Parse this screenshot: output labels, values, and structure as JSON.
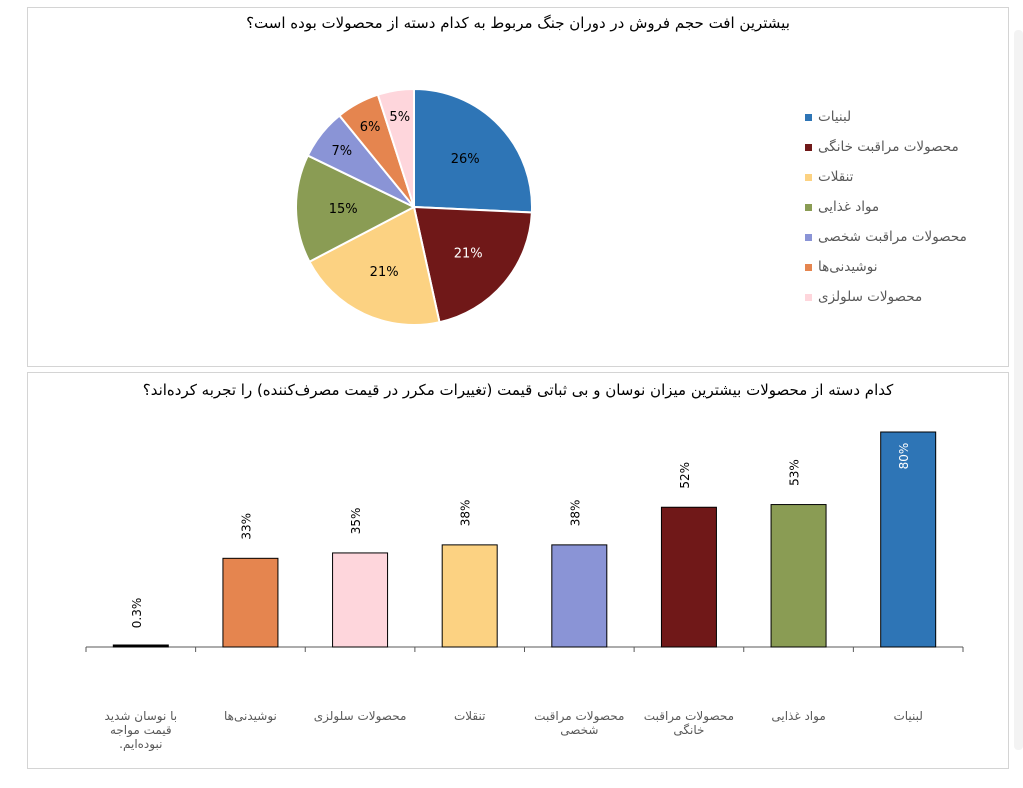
{
  "colors": {
    "blue": "#2e75b6",
    "maroon": "#701818",
    "yellow": "#fcd282",
    "green": "#8a9c54",
    "purple": "#8a94d6",
    "orange": "#e5854f",
    "pink": "#fed6dc"
  },
  "chart_data": [
    {
      "type": "pie",
      "title": "بیشترین افت حجم فروش در دوران جنگ مربوط به کدام دسته از محصولات بوده است؟",
      "categories": [
        "لبنیات",
        "محصولات مراقبت خانگی",
        "تنقلات",
        "مواد غذایی",
        "محصولات مراقبت شخصی",
        "نوشیدنی‌ها",
        "محصولات سلولزی"
      ],
      "values": [
        26,
        21,
        21,
        15,
        7,
        6,
        5
      ],
      "data_labels": [
        "26%",
        "21%",
        "21%",
        "15%",
        "7%",
        "6%",
        "5%"
      ],
      "colors": [
        "#2e75b6",
        "#701818",
        "#fcd282",
        "#8a9c54",
        "#8a94d6",
        "#e5854f",
        "#fed6dc"
      ],
      "legend": "right"
    },
    {
      "type": "bar",
      "title": "کدام دسته از محصولات بیشترین میزان نوسان و بی ثباتی قیمت (تغییرات مکرر در قیمت مصرف‌کننده) را تجربه کرده‌اند؟",
      "categories": [
        "لبنیات",
        "مواد غذایی",
        "محصولات مراقبت خانگی",
        "محصولات مراقبت شخصی",
        "تنقلات",
        "محصولات سلولزی",
        "نوشیدنی‌ها",
        "با نوسان شدید قیمت مواجه نبوده‌ایم."
      ],
      "values": [
        80,
        53,
        52,
        38,
        38,
        35,
        33,
        0.3
      ],
      "data_labels": [
        "80%",
        "53%",
        "52%",
        "38%",
        "38%",
        "35%",
        "33%",
        "0.3%"
      ],
      "colors": [
        "#2e75b6",
        "#8a9c54",
        "#701818",
        "#8a94d6",
        "#fcd282",
        "#fed6dc",
        "#e5854f",
        "#000000"
      ],
      "ylim": [
        0,
        80
      ],
      "xlabel": "",
      "ylabel": "",
      "grid": false,
      "legend": "none"
    }
  ]
}
